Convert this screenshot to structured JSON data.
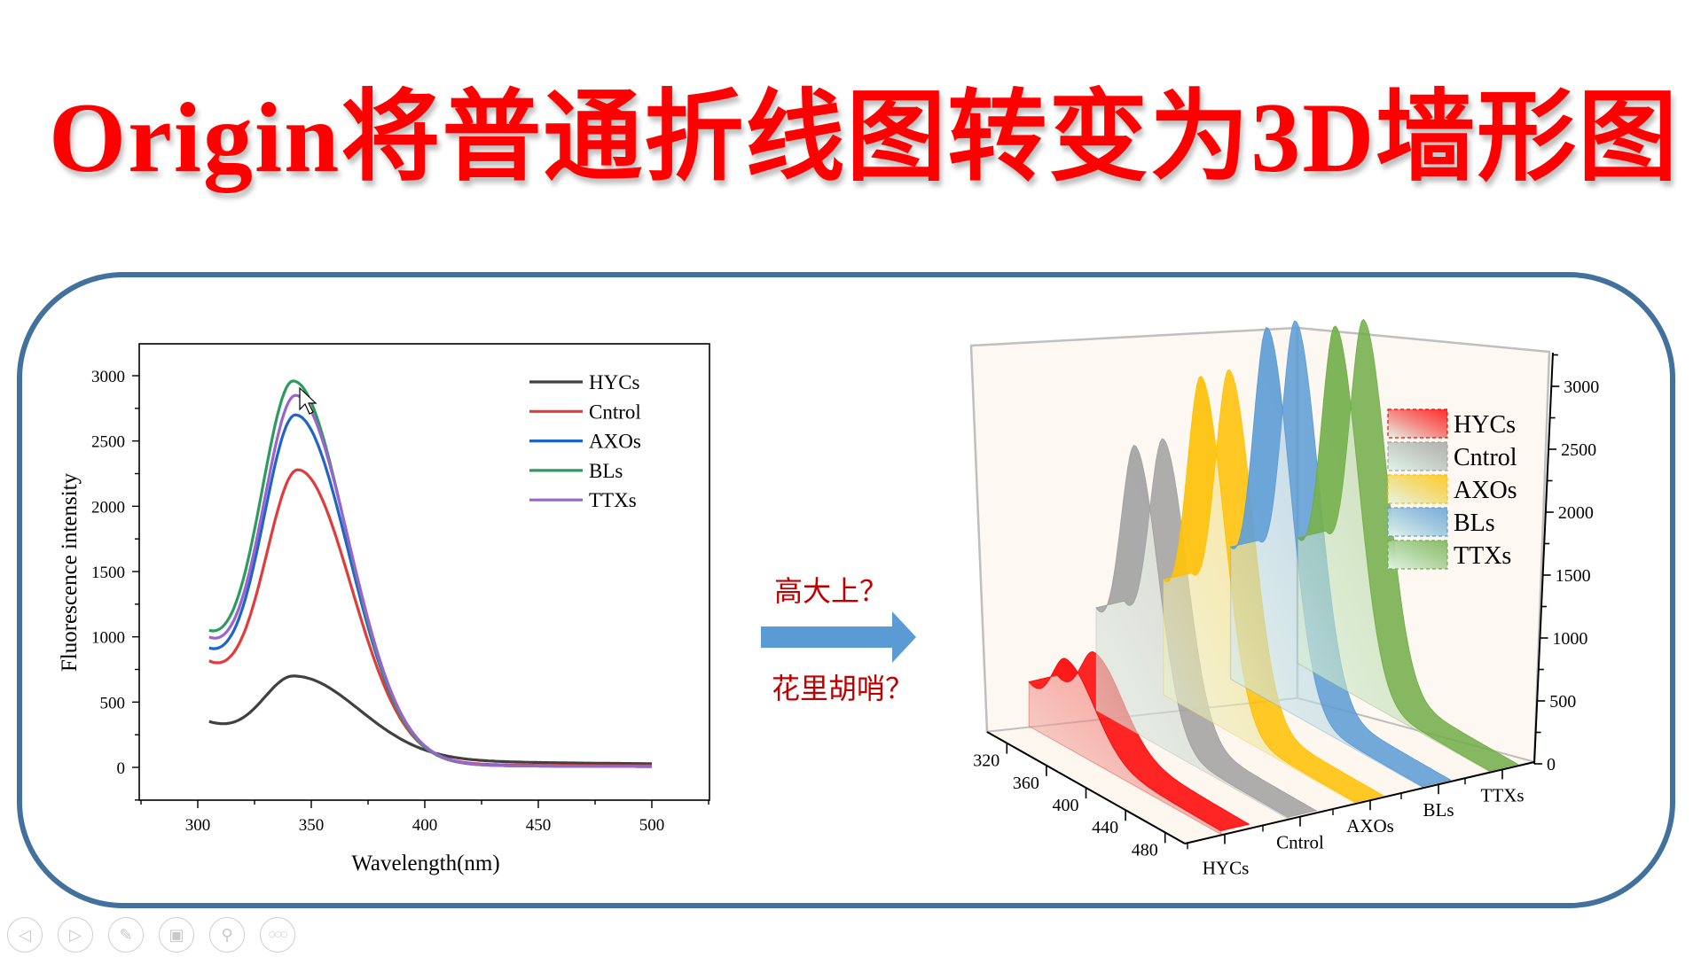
{
  "slide": {
    "title": "Origin将普通折线图转变为3D墙形图",
    "middle": {
      "question_top": "高大上？",
      "question_bottom": "花里胡哨？",
      "arrow_color": "#5b9bd5"
    },
    "frame_color": "#41719c",
    "title_color": "#ff0000",
    "question_color": "#c00000"
  },
  "toolbar": {
    "buttons": [
      {
        "name": "previous-slide",
        "icon": "◁"
      },
      {
        "name": "next-slide",
        "icon": "▷"
      },
      {
        "name": "pen-tool",
        "icon": "✎"
      },
      {
        "name": "slide-overview",
        "icon": "▣"
      },
      {
        "name": "zoom",
        "icon": "⚲"
      },
      {
        "name": "more-options",
        "icon": "○○○"
      }
    ]
  },
  "chart_data": [
    {
      "type": "line",
      "title": "",
      "xlabel": "Wavelength(nm)",
      "ylabel": "Fluorescence intensity",
      "xlim": [
        275,
        525
      ],
      "ylim": [
        -250,
        3250
      ],
      "xticks": [
        300,
        350,
        400,
        450,
        500
      ],
      "yticks": [
        0,
        500,
        1000,
        1500,
        2000,
        2500,
        3000
      ],
      "grid": false,
      "legend_position": "upper right",
      "x_range": [
        305,
        500
      ],
      "series": [
        {
          "name": "HYCs",
          "color": "#404040",
          "start": 330,
          "peak_x": 342,
          "peak": 700,
          "end": 20
        },
        {
          "name": "Cntrol",
          "color": "#e03c3c",
          "start": 750,
          "peak_x": 344,
          "peak": 2280,
          "end": 10
        },
        {
          "name": "AXOs",
          "color": "#1f64c8",
          "start": 820,
          "peak_x": 343,
          "peak": 2700,
          "end": 5
        },
        {
          "name": "BLs",
          "color": "#2e9b5e",
          "start": 930,
          "peak_x": 342,
          "peak": 2960,
          "end": 5
        },
        {
          "name": "TTXs",
          "color": "#9a63cf",
          "start": 900,
          "peak_x": 343,
          "peak": 2850,
          "end": 5
        }
      ]
    },
    {
      "type": "3d-wall",
      "title": "",
      "x_axis": {
        "label": "",
        "ticks": [
          320,
          360,
          400,
          440,
          480
        ]
      },
      "y_axis": {
        "label": "",
        "categories": [
          "HYCs",
          "Cntrol",
          "AXOs",
          "BLs",
          "TTXs"
        ]
      },
      "z_axis": {
        "label": "",
        "ticks": [
          0,
          500,
          1000,
          1500,
          2000,
          2500,
          3000
        ]
      },
      "legend_position": "upper right (inside)",
      "series": [
        {
          "name": "HYCs",
          "color": "#ff0000",
          "peak": 700
        },
        {
          "name": "Cntrol",
          "color": "#a0a0a0",
          "peak": 2280
        },
        {
          "name": "AXOs",
          "color": "#ffc000",
          "peak": 2700
        },
        {
          "name": "BLs",
          "color": "#5b9bd5",
          "peak": 2960
        },
        {
          "name": "TTXs",
          "color": "#70ad47",
          "peak": 2850
        }
      ]
    }
  ]
}
